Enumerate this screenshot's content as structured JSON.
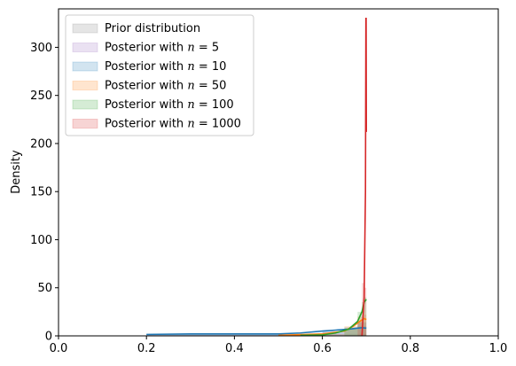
{
  "chart_data": {
    "type": "line",
    "title": "",
    "xlabel": "",
    "ylabel": "Density",
    "xlim": [
      0.0,
      1.0
    ],
    "ylim": [
      0,
      340
    ],
    "xticks": [
      "0.0",
      "0.2",
      "0.4",
      "0.6",
      "0.8",
      "1.0"
    ],
    "yticks": [
      "0",
      "50",
      "100",
      "150",
      "200",
      "250",
      "300"
    ],
    "grid": false,
    "legend_position": "upper-left",
    "series": [
      {
        "name": "Prior distribution",
        "color": "#7f7f7f",
        "hist": [
          [
            0.2,
            0.7,
            2
          ]
        ],
        "kde": [
          [
            0.2,
            1.5
          ],
          [
            0.3,
            2
          ],
          [
            0.4,
            2
          ],
          [
            0.5,
            2
          ],
          [
            0.6,
            2
          ],
          [
            0.7,
            2
          ]
        ],
        "draw_kde": false
      },
      {
        "name": "Posterior with $n = 5$",
        "color": "#9467bd",
        "hist": [
          [
            0.2,
            0.6,
            1
          ],
          [
            0.6,
            0.65,
            4
          ],
          [
            0.65,
            0.68,
            7
          ],
          [
            0.68,
            0.7,
            10
          ]
        ],
        "kde": [
          [
            0.2,
            1
          ],
          [
            0.3,
            1.5
          ],
          [
            0.4,
            1.8
          ],
          [
            0.5,
            2.5
          ],
          [
            0.6,
            4
          ],
          [
            0.65,
            6
          ],
          [
            0.68,
            8
          ],
          [
            0.7,
            9
          ]
        ],
        "draw_kde": false
      },
      {
        "name": "Posterior with $n = 10$",
        "color": "#1f77b4",
        "hist": [
          [
            0.2,
            0.6,
            1.5
          ],
          [
            0.6,
            0.65,
            5
          ],
          [
            0.65,
            0.68,
            9
          ],
          [
            0.68,
            0.7,
            14
          ]
        ],
        "kde": [
          [
            0.2,
            1.5
          ],
          [
            0.3,
            2
          ],
          [
            0.4,
            2
          ],
          [
            0.5,
            2
          ],
          [
            0.55,
            3
          ],
          [
            0.6,
            5
          ],
          [
            0.63,
            6
          ],
          [
            0.66,
            7
          ],
          [
            0.68,
            8
          ],
          [
            0.69,
            8.5
          ],
          [
            0.7,
            8
          ]
        ],
        "draw_kde": true
      },
      {
        "name": "Posterior with $n = 50$",
        "color": "#ff7f0e",
        "hist": [
          [
            0.6,
            0.65,
            2
          ],
          [
            0.65,
            0.68,
            10
          ],
          [
            0.68,
            0.695,
            20
          ],
          [
            0.695,
            0.7,
            22
          ]
        ],
        "kde": [
          [
            0.5,
            0.5
          ],
          [
            0.6,
            2
          ],
          [
            0.65,
            5
          ],
          [
            0.67,
            10
          ],
          [
            0.685,
            15
          ],
          [
            0.695,
            18
          ],
          [
            0.7,
            17
          ]
        ],
        "draw_kde": true
      },
      {
        "name": "Posterior with $n = 100$",
        "color": "#2ca02c",
        "hist": [
          [
            0.65,
            0.68,
            8
          ],
          [
            0.68,
            0.69,
            25
          ],
          [
            0.69,
            0.695,
            35
          ],
          [
            0.695,
            0.7,
            40
          ]
        ],
        "kde": [
          [
            0.55,
            0.5
          ],
          [
            0.6,
            1
          ],
          [
            0.63,
            3
          ],
          [
            0.66,
            7
          ],
          [
            0.68,
            15
          ],
          [
            0.69,
            25
          ],
          [
            0.695,
            35
          ],
          [
            0.7,
            38
          ]
        ],
        "draw_kde": true
      },
      {
        "name": "Posterior with $n = 1000$",
        "color": "#d62728",
        "hist": [
          [
            0.68,
            0.69,
            15
          ],
          [
            0.69,
            0.695,
            55
          ],
          [
            0.695,
            0.7,
            50
          ]
        ],
        "kde": [
          [
            0.69,
            0
          ],
          [
            0.695,
            40
          ],
          [
            0.698,
            150
          ],
          [
            0.699,
            330
          ],
          [
            0.6995,
            330
          ],
          [
            0.7,
            212
          ]
        ],
        "draw_kde": true
      }
    ]
  }
}
